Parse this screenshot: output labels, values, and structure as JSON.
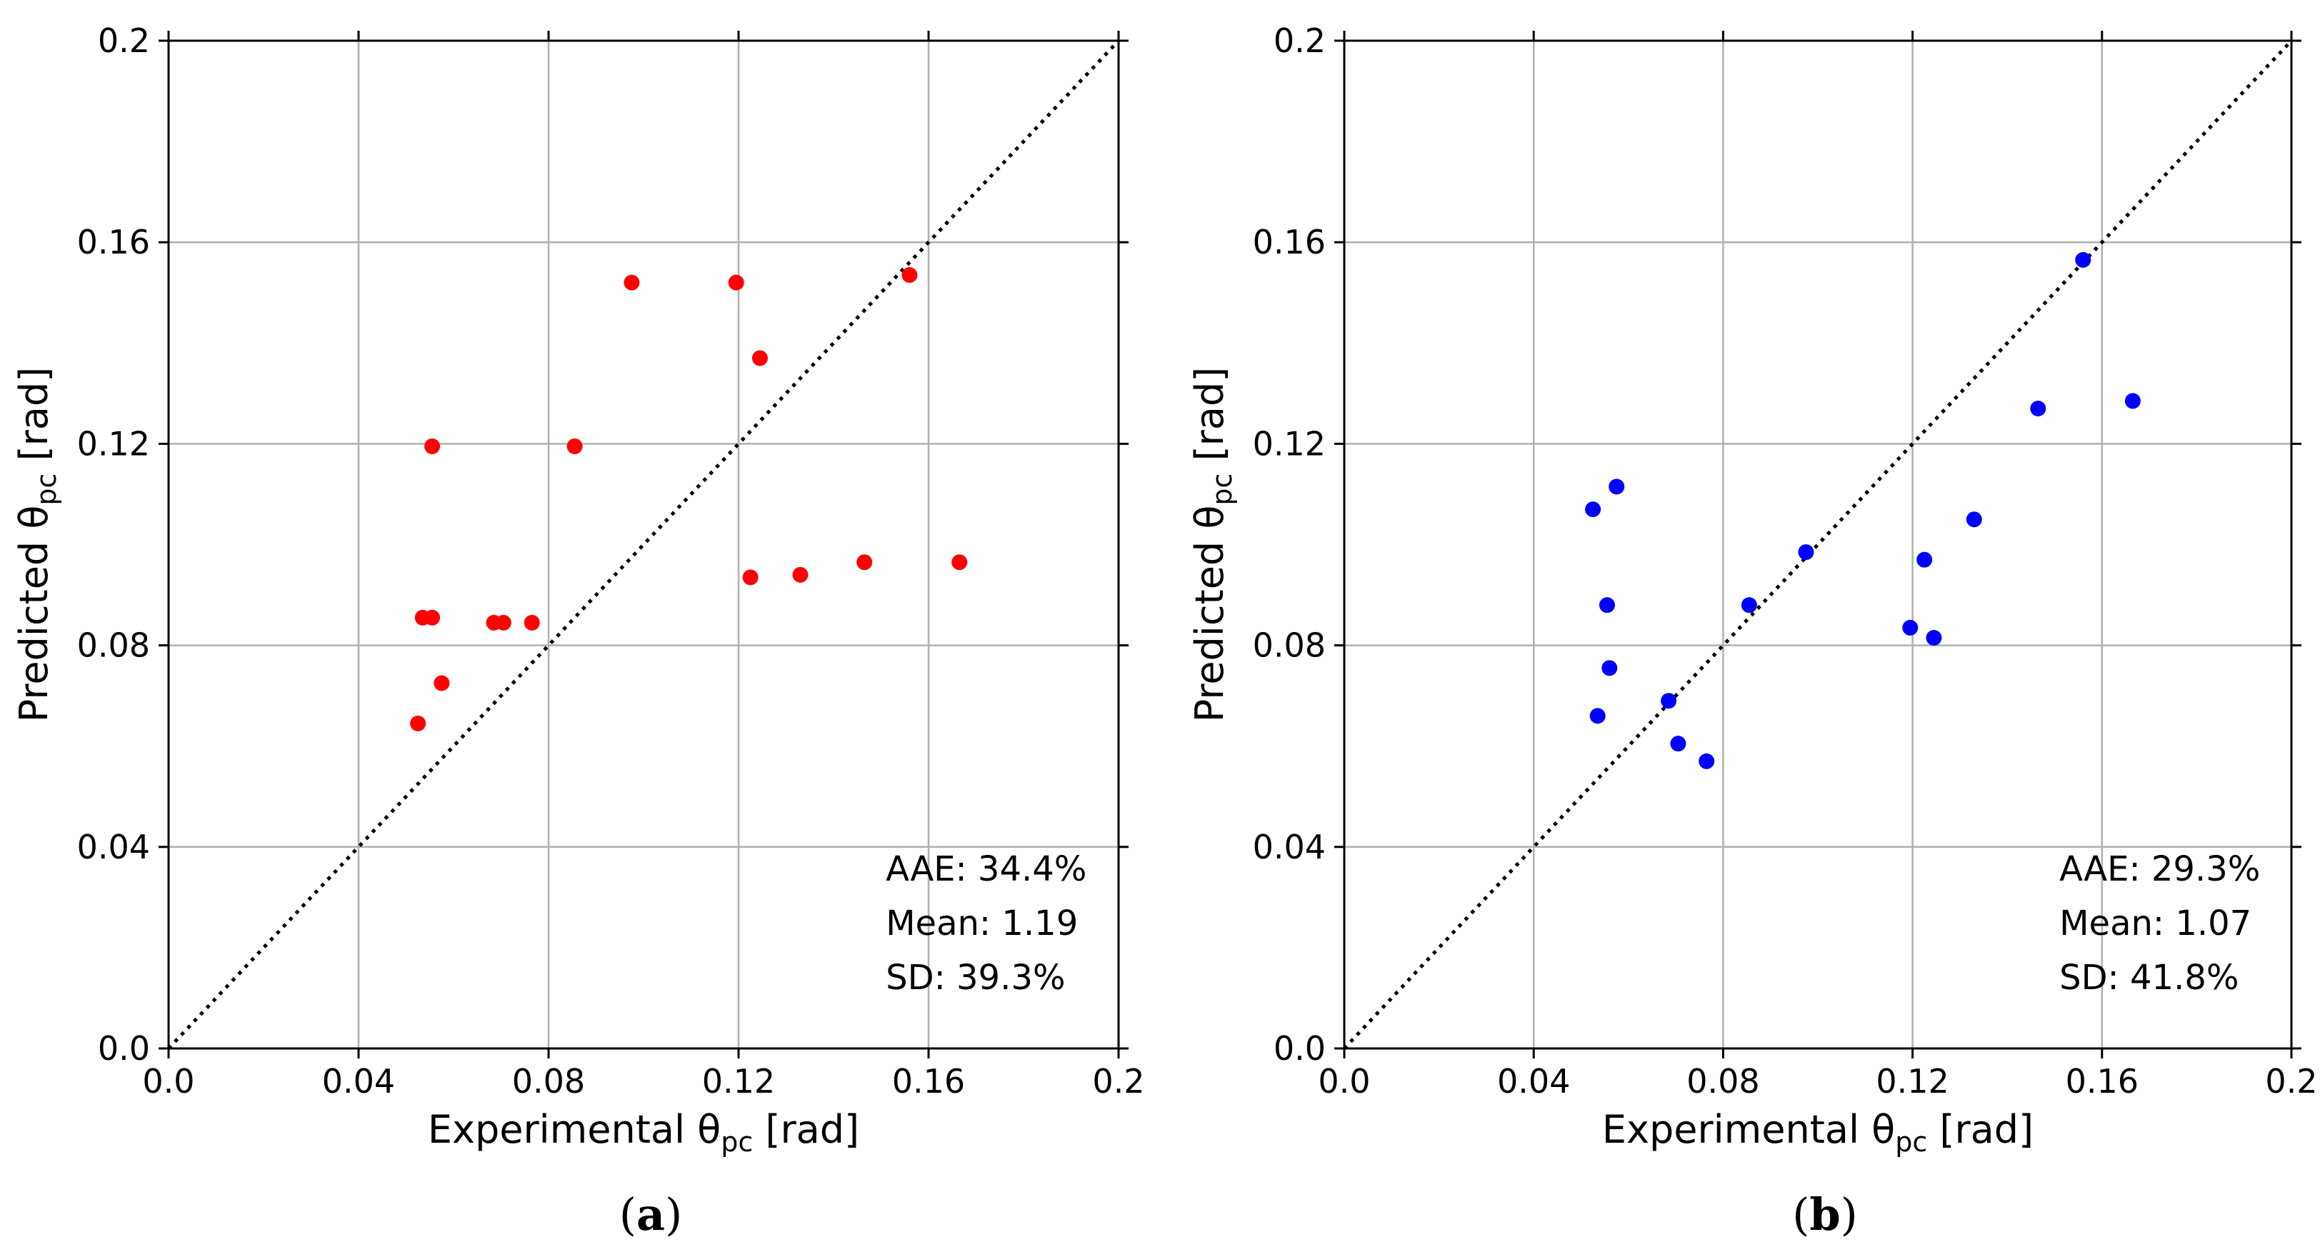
{
  "chart_data": [
    {
      "type": "scatter",
      "panel": "a",
      "panel_label": "a",
      "xlabel": "Experimental θpc [rad]",
      "ylabel": "Predicted θpc [rad]",
      "xlabel_parts": {
        "pre": "Experimental θ",
        "sub": "pc",
        "post": " [rad]"
      },
      "ylabel_parts": {
        "pre": "Predicted θ",
        "sub": "pc",
        "post": " [rad]"
      },
      "xlim": [
        0,
        0.2
      ],
      "ylim": [
        0,
        0.2
      ],
      "xticks": [
        "0.0",
        "0.04",
        "0.08",
        "0.12",
        "0.16",
        "0.2"
      ],
      "yticks": [
        "0.0",
        "0.04",
        "0.08",
        "0.12",
        "0.16",
        "0.2"
      ],
      "grid": true,
      "reference_line": "y = x (dotted)",
      "marker_color": "#ff0000",
      "stats": [
        "AAE: 34.4%",
        "Mean: 1.19",
        "SD: 39.3%"
      ],
      "points": [
        {
          "x": 0.0525,
          "y": 0.0645
        },
        {
          "x": 0.0535,
          "y": 0.0855
        },
        {
          "x": 0.0555,
          "y": 0.0855
        },
        {
          "x": 0.0555,
          "y": 0.1195
        },
        {
          "x": 0.0575,
          "y": 0.0725
        },
        {
          "x": 0.0685,
          "y": 0.0845
        },
        {
          "x": 0.0705,
          "y": 0.0845
        },
        {
          "x": 0.0765,
          "y": 0.0845
        },
        {
          "x": 0.0855,
          "y": 0.1195
        },
        {
          "x": 0.0975,
          "y": 0.152
        },
        {
          "x": 0.1195,
          "y": 0.152
        },
        {
          "x": 0.1225,
          "y": 0.0935
        },
        {
          "x": 0.1245,
          "y": 0.137
        },
        {
          "x": 0.133,
          "y": 0.094
        },
        {
          "x": 0.1465,
          "y": 0.0965
        },
        {
          "x": 0.156,
          "y": 0.1535
        },
        {
          "x": 0.1665,
          "y": 0.0965
        }
      ]
    },
    {
      "type": "scatter",
      "panel": "b",
      "panel_label": "b",
      "xlabel": "Experimental θpc [rad]",
      "ylabel": "Predicted θpc [rad]",
      "xlabel_parts": {
        "pre": "Experimental θ",
        "sub": "pc",
        "post": " [rad]"
      },
      "ylabel_parts": {
        "pre": "Predicted θ",
        "sub": "pc",
        "post": " [rad]"
      },
      "xlim": [
        0,
        0.2
      ],
      "ylim": [
        0,
        0.2
      ],
      "xticks": [
        "0.0",
        "0.04",
        "0.08",
        "0.12",
        "0.16",
        "0.2"
      ],
      "yticks": [
        "0.0",
        "0.04",
        "0.08",
        "0.12",
        "0.16",
        "0.2"
      ],
      "grid": true,
      "reference_line": "y = x (dotted)",
      "marker_color": "#0000ff",
      "stats": [
        "AAE: 29.3%",
        "Mean: 1.07",
        "SD: 41.8%"
      ],
      "points": [
        {
          "x": 0.0525,
          "y": 0.107
        },
        {
          "x": 0.0535,
          "y": 0.066
        },
        {
          "x": 0.0555,
          "y": 0.088
        },
        {
          "x": 0.056,
          "y": 0.0755
        },
        {
          "x": 0.0575,
          "y": 0.1115
        },
        {
          "x": 0.0685,
          "y": 0.069
        },
        {
          "x": 0.0705,
          "y": 0.0605
        },
        {
          "x": 0.0765,
          "y": 0.057
        },
        {
          "x": 0.0855,
          "y": 0.088
        },
        {
          "x": 0.0975,
          "y": 0.0985
        },
        {
          "x": 0.1195,
          "y": 0.0835
        },
        {
          "x": 0.1225,
          "y": 0.097
        },
        {
          "x": 0.1245,
          "y": 0.0815
        },
        {
          "x": 0.133,
          "y": 0.105
        },
        {
          "x": 0.1465,
          "y": 0.127
        },
        {
          "x": 0.156,
          "y": 0.1565
        },
        {
          "x": 0.1665,
          "y": 0.1285
        }
      ]
    }
  ]
}
